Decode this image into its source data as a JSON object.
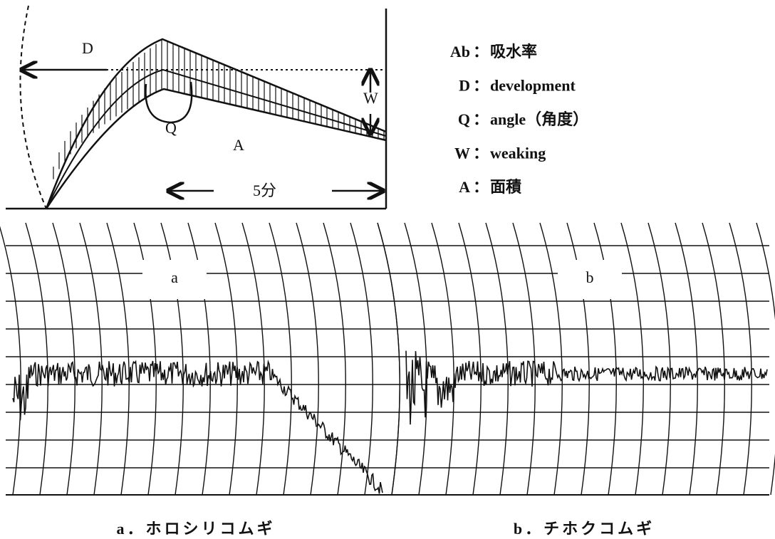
{
  "diagram": {
    "labels": {
      "d": "D",
      "w": "W",
      "q": "Q",
      "a": "A",
      "time": "5分"
    },
    "legend": [
      {
        "key": "Ab",
        "desc": "吸水率"
      },
      {
        "key": "D",
        "desc": "development"
      },
      {
        "key": "Q",
        "desc": "angle（角度）"
      },
      {
        "key": "W",
        "desc": "weaking"
      },
      {
        "key": "A",
        "desc": "面積"
      }
    ]
  },
  "panels": [
    {
      "label": "a",
      "caption": "a．ホロシリコムギ"
    },
    {
      "label": "b",
      "caption": "b．チホクコムギ"
    }
  ]
}
